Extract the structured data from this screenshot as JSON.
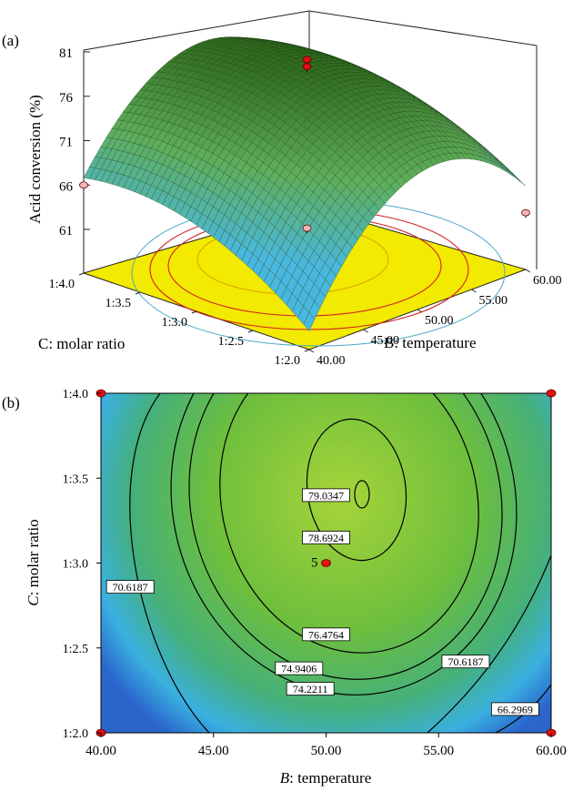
{
  "chart_data": [
    {
      "type": "surface",
      "panel_label": "(a)",
      "zlabel": "Acid conversion (%)",
      "z_ticks": [
        "61",
        "66",
        "71",
        "76",
        "81"
      ],
      "zlim": [
        61,
        81
      ],
      "x_axis": {
        "label": "B: temperature",
        "ticks": [
          "40.00",
          "45.00",
          "50.00",
          "55.00",
          "60.00"
        ],
        "range": [
          40,
          60
        ]
      },
      "y_axis": {
        "label": "C: molar ratio",
        "ticks": [
          "1:2.0",
          "1:2.5",
          "1:3.0",
          "1:3.5",
          "1:4.0"
        ],
        "range": [
          2.0,
          4.0
        ]
      },
      "model": {
        "max_z": 79.2,
        "max_at_temperature": 51.3,
        "max_at_ratio": 3.45
      },
      "design_points": [
        {
          "temperature": 50,
          "ratio": 3.0,
          "z": 80.6
        },
        {
          "temperature": 50,
          "ratio": 3.0,
          "z": 79.8
        },
        {
          "temperature": 40,
          "ratio": 4.0,
          "z": 66.0
        },
        {
          "temperature": 60,
          "ratio": 2.0,
          "z": 63.6
        },
        {
          "temperature": 50,
          "ratio": 3.0,
          "z": 61.6
        }
      ],
      "colors": {
        "surface_high": "#2e6b1a",
        "surface_mid": "#5fae5a",
        "surface_low": "#49b8e0",
        "floor": "#f2ea00",
        "point": "#dd1111"
      }
    },
    {
      "type": "contour",
      "panel_label": "(b)",
      "xlabel_prefix": "B",
      "xlabel_rest": ": temperature",
      "ylabel_prefix": "C",
      "ylabel_rest": ": molar ratio",
      "x_ticks": [
        "40.00",
        "45.00",
        "50.00",
        "55.00",
        "60.00"
      ],
      "y_ticks": [
        "1:2.0",
        "1:2.5",
        "1:3.0",
        "1:3.5",
        "1:4.0"
      ],
      "xlim": [
        40,
        60
      ],
      "ylim": [
        2.0,
        4.0
      ],
      "contour_levels": [
        "79.0347",
        "78.6924",
        "76.4764",
        "74.9406",
        "74.2211",
        "70.6187",
        "66.2969"
      ],
      "contour_labels": [
        {
          "text": "79.0347",
          "temperature": 50.0,
          "ratio": 3.4
        },
        {
          "text": "78.6924",
          "temperature": 50.0,
          "ratio": 3.15
        },
        {
          "text": "76.4764",
          "temperature": 50.0,
          "ratio": 2.58
        },
        {
          "text": "74.9406",
          "temperature": 48.8,
          "ratio": 2.38
        },
        {
          "text": "74.2211",
          "temperature": 49.3,
          "ratio": 2.26
        },
        {
          "text": "70.6187",
          "temperature": 41.3,
          "ratio": 2.86
        },
        {
          "text": "70.6187",
          "temperature": 56.2,
          "ratio": 2.42
        },
        {
          "text": "66.2969",
          "temperature": 58.4,
          "ratio": 2.14
        }
      ],
      "center_point": {
        "temperature": 50,
        "ratio": 3.0,
        "label": "5"
      },
      "design_points": [
        {
          "temperature": 40,
          "ratio": 4.0
        },
        {
          "temperature": 60,
          "ratio": 4.0
        },
        {
          "temperature": 40,
          "ratio": 2.0
        },
        {
          "temperature": 60,
          "ratio": 2.0
        }
      ],
      "colors": {
        "center": "#a6d43a",
        "mid": "#5fb845",
        "edge": "#3ab0e0",
        "corner": "#1d52c4",
        "contour": "#000000",
        "point": "#dd1111"
      }
    }
  ]
}
